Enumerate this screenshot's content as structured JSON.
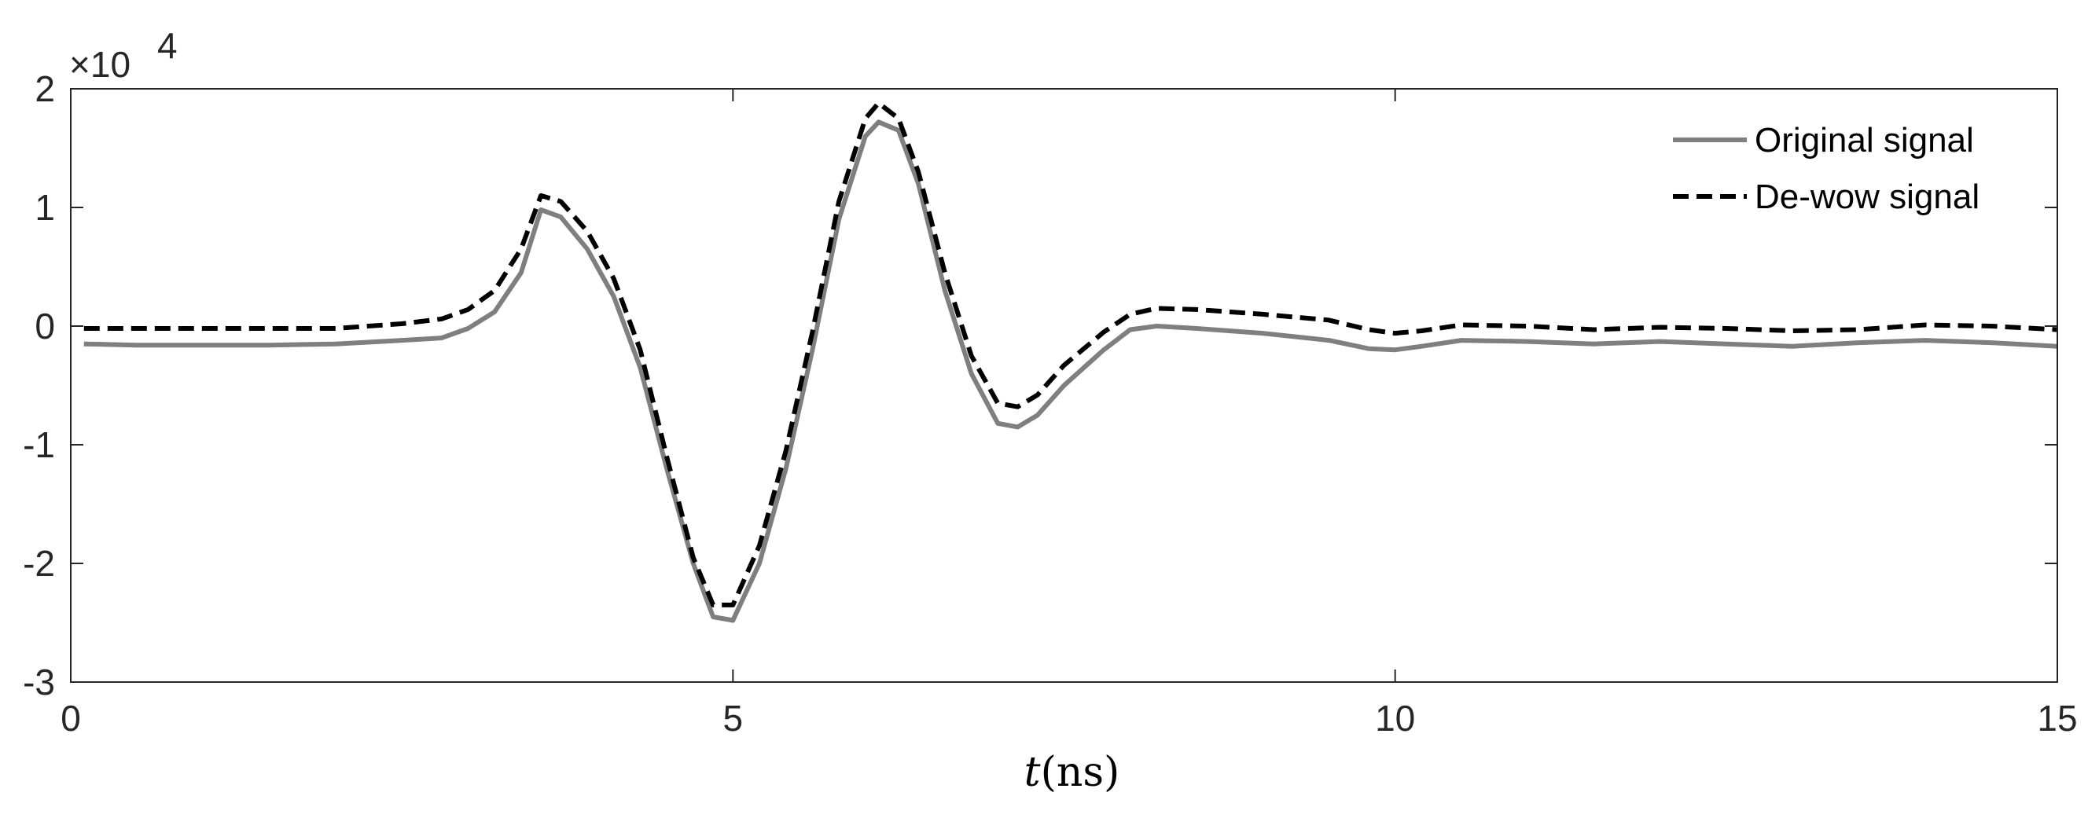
{
  "chart_data": {
    "type": "line",
    "title": "",
    "xlabel_var": "t",
    "xlabel_unit": "(ns)",
    "ylabel": "",
    "xlim": [
      0,
      15
    ],
    "ylim": [
      -30000,
      20000
    ],
    "x_ticks": [
      0,
      5,
      10,
      15
    ],
    "x_tick_labels": [
      "0",
      "5",
      "10",
      "15"
    ],
    "y_ticks": [
      -30000,
      -20000,
      -10000,
      0,
      10000,
      20000
    ],
    "y_tick_labels": [
      "-3",
      "-2",
      "-1",
      "0",
      "1",
      "2"
    ],
    "y_exponent_base": "×10",
    "y_exponent_power": "4",
    "grid": false,
    "legend_position": "top-right",
    "series": [
      {
        "name": "Original signal",
        "color": "#7f7f7f",
        "style": "solid",
        "x": [
          0.1,
          0.5,
          1.0,
          1.5,
          2.0,
          2.5,
          2.8,
          3.0,
          3.2,
          3.4,
          3.55,
          3.7,
          3.9,
          4.1,
          4.3,
          4.5,
          4.7,
          4.85,
          5.0,
          5.2,
          5.4,
          5.6,
          5.8,
          6.0,
          6.1,
          6.25,
          6.4,
          6.6,
          6.8,
          7.0,
          7.15,
          7.3,
          7.5,
          7.8,
          8.0,
          8.2,
          8.5,
          9.0,
          9.5,
          9.8,
          10.0,
          10.2,
          10.5,
          11.0,
          11.5,
          12.0,
          12.5,
          13.0,
          13.5,
          14.0,
          14.5,
          15.0
        ],
        "values": [
          -1500,
          -1600,
          -1600,
          -1600,
          -1500,
          -1200,
          -1000,
          -200,
          1200,
          4500,
          9800,
          9200,
          6500,
          2500,
          -3500,
          -12000,
          -20000,
          -24500,
          -24800,
          -20000,
          -12000,
          -2000,
          9000,
          16000,
          17200,
          16500,
          12000,
          3000,
          -4000,
          -8200,
          -8500,
          -7500,
          -5000,
          -2000,
          -300,
          0,
          -200,
          -600,
          -1200,
          -1900,
          -2000,
          -1700,
          -1200,
          -1300,
          -1500,
          -1300,
          -1500,
          -1700,
          -1400,
          -1200,
          -1400,
          -1700
        ]
      },
      {
        "name": "De-wow signal",
        "color": "#000000",
        "style": "dashed",
        "x": [
          0.1,
          0.5,
          1.0,
          1.5,
          2.0,
          2.5,
          2.8,
          3.0,
          3.2,
          3.4,
          3.55,
          3.7,
          3.9,
          4.1,
          4.3,
          4.5,
          4.7,
          4.85,
          5.0,
          5.2,
          5.4,
          5.6,
          5.8,
          6.0,
          6.1,
          6.25,
          6.4,
          6.6,
          6.8,
          7.0,
          7.15,
          7.3,
          7.5,
          7.8,
          8.0,
          8.2,
          8.5,
          9.0,
          9.5,
          9.8,
          10.0,
          10.2,
          10.5,
          11.0,
          11.5,
          12.0,
          12.5,
          13.0,
          13.5,
          14.0,
          14.5,
          15.0
        ],
        "values": [
          -200,
          -200,
          -200,
          -200,
          -200,
          200,
          600,
          1400,
          3000,
          6500,
          11000,
          10500,
          8000,
          4000,
          -2000,
          -11000,
          -19500,
          -23500,
          -23500,
          -18500,
          -10500,
          -500,
          10500,
          17500,
          18800,
          17500,
          13000,
          4500,
          -2500,
          -6500,
          -6800,
          -5800,
          -3300,
          -500,
          1000,
          1500,
          1400,
          1000,
          500,
          -300,
          -600,
          -400,
          100,
          0,
          -300,
          -100,
          -200,
          -400,
          -300,
          100,
          0,
          -300
        ]
      }
    ]
  }
}
